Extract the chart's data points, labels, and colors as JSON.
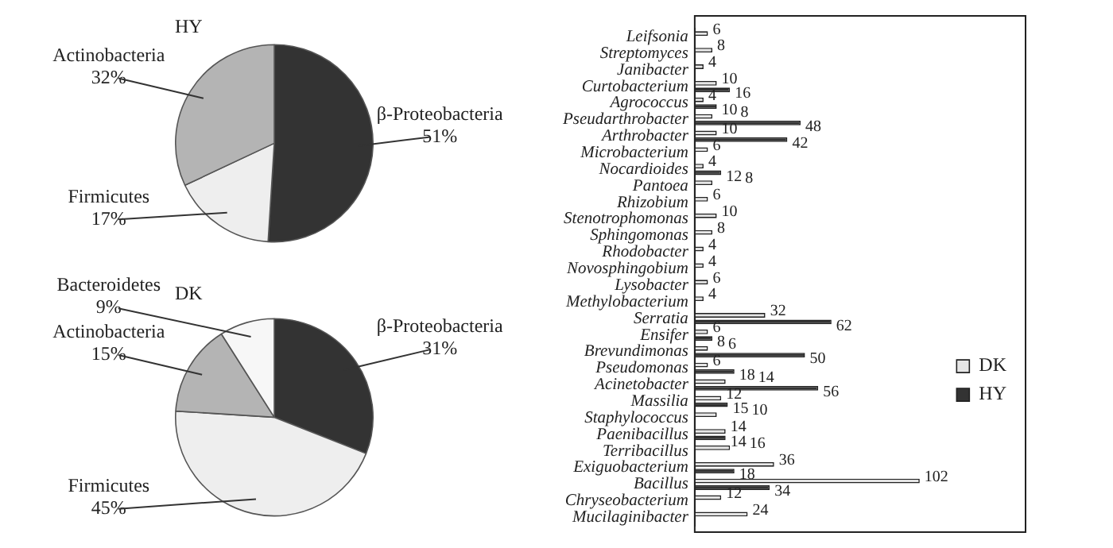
{
  "chart_data": [
    {
      "type": "pie",
      "title": "HY",
      "categories": [
        "β-Proteobacteria",
        "Firmicutes",
        "Actinobacteria"
      ],
      "values": [
        51,
        17,
        32
      ],
      "colors": [
        "#333333",
        "#eeeeee",
        "#b4b4b4"
      ],
      "value_labels": [
        "51%",
        "17%",
        "32%"
      ]
    },
    {
      "type": "pie",
      "title": "DK",
      "categories": [
        "β-Proteobacteria",
        "Firmicutes",
        "Actinobacteria",
        "Bacteroidetes"
      ],
      "values": [
        31,
        45,
        15,
        9
      ],
      "colors": [
        "#333333",
        "#eeeeee",
        "#b4b4b4",
        "#f7f7f7"
      ],
      "value_labels": [
        "31%",
        "45%",
        "15%",
        "9%"
      ]
    },
    {
      "type": "bar",
      "orientation": "horizontal",
      "categories": [
        "Leifsonia",
        "Streptomyces",
        "Janibacter",
        "Curtobacterium",
        "Agrococcus",
        "Pseudarthrobacter",
        "Arthrobacter",
        "Microbacterium",
        "Nocardioides",
        "Pantoea",
        "Rhizobium",
        "Stenotrophomonas",
        "Sphingomonas",
        "Rhodobacter",
        "Novosphingobium",
        "Lysobacter",
        "Methylobacterium",
        "Serratia",
        "Ensifer",
        "Brevundimonas",
        "Pseudomonas",
        "Acinetobacter",
        "Massilia",
        "Staphylococcus",
        "Paenibacillus",
        "Terribacillus",
        "Exiguobacterium",
        "Bacillus",
        "Chryseobacterium",
        "Mucilaginibacter"
      ],
      "series": [
        {
          "name": "DK",
          "color": "#e6e6e6",
          "values": [
            6,
            8,
            4,
            10,
            4,
            8,
            10,
            6,
            4,
            8,
            6,
            10,
            8,
            4,
            4,
            6,
            4,
            32,
            6,
            6,
            6,
            14,
            12,
            10,
            14,
            16,
            36,
            102,
            12,
            24
          ]
        },
        {
          "name": "HY",
          "color": "#333333",
          "values": [
            null,
            null,
            null,
            16,
            10,
            48,
            42,
            null,
            12,
            null,
            null,
            null,
            null,
            null,
            null,
            null,
            null,
            62,
            8,
            50,
            18,
            56,
            15,
            null,
            14,
            null,
            18,
            34,
            null,
            null
          ]
        }
      ],
      "data_labels": true,
      "legend": "right",
      "tick_labels": "y"
    }
  ]
}
